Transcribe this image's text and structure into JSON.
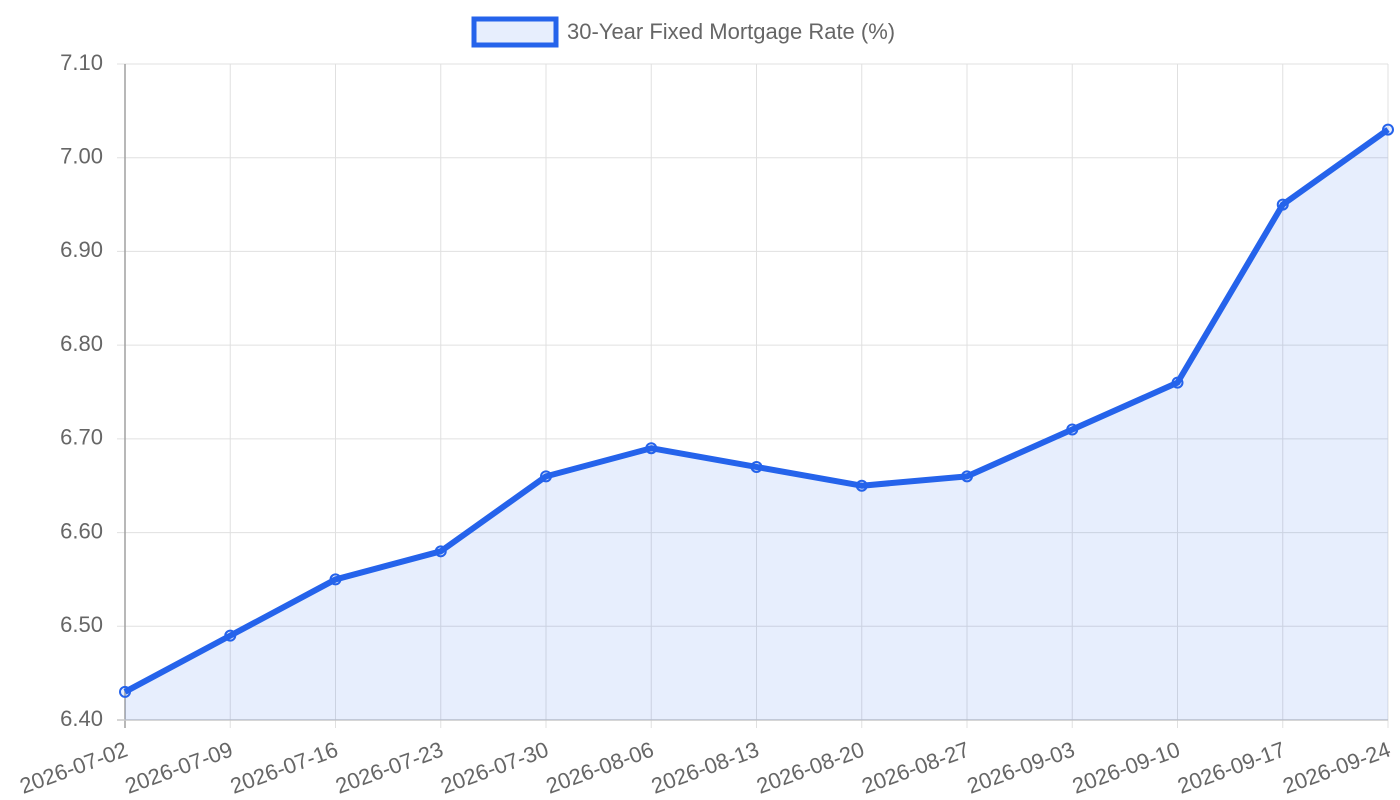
{
  "chart_data": {
    "type": "line",
    "categories": [
      "2026-07-02",
      "2026-07-09",
      "2026-07-16",
      "2026-07-23",
      "2026-07-30",
      "2026-08-06",
      "2026-08-13",
      "2026-08-20",
      "2026-08-27",
      "2026-09-03",
      "2026-09-10",
      "2026-09-17",
      "2026-09-24"
    ],
    "series": [
      {
        "name": "30-Year Fixed Mortgage Rate (%)",
        "color": "#2563eb",
        "fill": "rgba(37,99,235,0.11)",
        "values": [
          6.43,
          6.49,
          6.55,
          6.58,
          6.66,
          6.69,
          6.67,
          6.65,
          6.66,
          6.71,
          6.76,
          6.95,
          7.03
        ]
      }
    ],
    "ylim": [
      6.4,
      7.1
    ],
    "yticks": [
      {
        "value": 6.4,
        "label": "6.40"
      },
      {
        "value": 6.5,
        "label": "6.50"
      },
      {
        "value": 6.6,
        "label": "6.60"
      },
      {
        "value": 6.7,
        "label": "6.70"
      },
      {
        "value": 6.8,
        "label": "6.80"
      },
      {
        "value": 6.9,
        "label": "6.90"
      },
      {
        "value": 7.0,
        "label": "7.00"
      },
      {
        "value": 7.1,
        "label": "7.10"
      }
    ],
    "grid": true,
    "legend": "top"
  }
}
